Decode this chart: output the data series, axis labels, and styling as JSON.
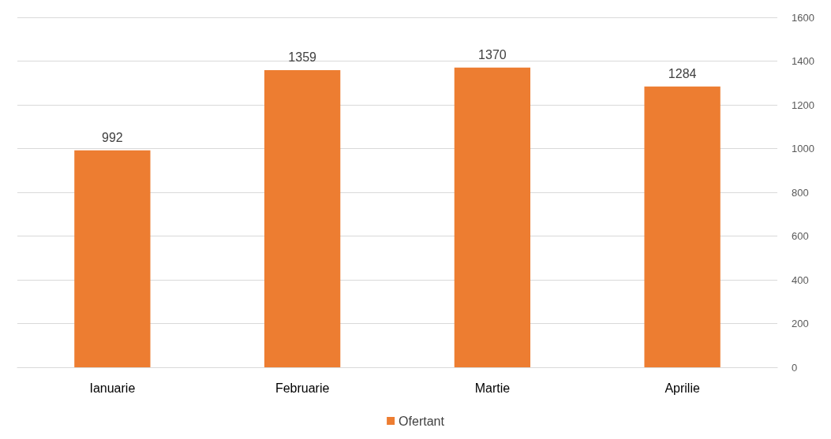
{
  "chart_data": {
    "type": "bar",
    "categories": [
      "Ianuarie",
      "Februarie",
      "Martie",
      "Aprilie"
    ],
    "series": [
      {
        "name": "Ofertant",
        "color": "#ed7d31",
        "values": [
          992,
          1359,
          1370,
          1284
        ]
      }
    ],
    "ylim": [
      0,
      1600
    ],
    "yticks": [
      0,
      200,
      400,
      600,
      800,
      1000,
      1200,
      1400,
      1600
    ],
    "grid": "y",
    "legend": "bottom",
    "data_labels": true
  }
}
